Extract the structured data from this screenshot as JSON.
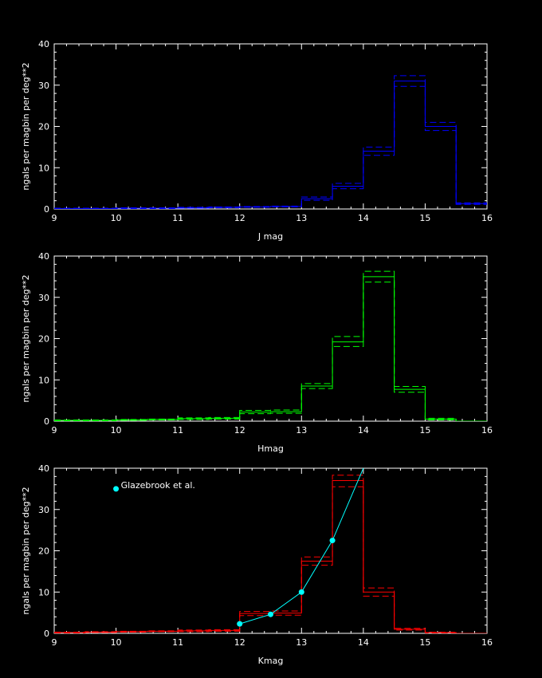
{
  "chart_data": [
    {
      "type": "histogram",
      "xlabel": "J mag",
      "ylabel": "ngals per magbin per deg**2",
      "xlim": [
        9,
        16
      ],
      "ylim": [
        0,
        40
      ],
      "xticks": [
        9,
        10,
        11,
        12,
        13,
        14,
        15,
        16
      ],
      "yticks": [
        0,
        10,
        20,
        30,
        40
      ],
      "color": "#0000ff",
      "bin_edges": [
        9,
        9.5,
        10,
        10.5,
        11,
        11.5,
        12,
        12.5,
        13,
        13.5,
        14,
        14.5,
        15,
        15.5,
        16
      ],
      "values": [
        0.1,
        0.1,
        0.2,
        0.2,
        0.3,
        0.4,
        0.5,
        0.6,
        2.5,
        5.5,
        14,
        31,
        20,
        1.3
      ],
      "err_upper": [
        0.2,
        0.2,
        0.3,
        0.3,
        0.4,
        0.5,
        0.6,
        0.7,
        2.9,
        6.2,
        15,
        32.3,
        21,
        1.5
      ],
      "err_lower": [
        0.05,
        0.05,
        0.1,
        0.1,
        0.2,
        0.3,
        0.4,
        0.5,
        2.1,
        4.9,
        13,
        29.7,
        19,
        1.1
      ]
    },
    {
      "type": "histogram",
      "xlabel": "Hmag",
      "ylabel": "ngals per magbin per deg**2",
      "xlim": [
        9,
        16
      ],
      "ylim": [
        0,
        40
      ],
      "xticks": [
        9,
        10,
        11,
        12,
        13,
        14,
        15,
        16
      ],
      "yticks": [
        0,
        10,
        20,
        30,
        40
      ],
      "color": "#00ff00",
      "bin_edges": [
        9,
        9.5,
        10,
        10.5,
        11,
        11.5,
        12,
        12.5,
        13,
        13.5,
        14,
        14.5,
        15,
        15.5,
        16
      ],
      "values": [
        0.2,
        0.2,
        0.3,
        0.4,
        0.6,
        0.7,
        2.2,
        2.3,
        8.5,
        19.2,
        35,
        7.7,
        0.5,
        0
      ],
      "err_upper": [
        0.3,
        0.3,
        0.4,
        0.5,
        0.8,
        0.9,
        2.6,
        2.7,
        9.1,
        20.5,
        36.3,
        8.4,
        0.7,
        0
      ],
      "err_lower": [
        0.1,
        0.1,
        0.2,
        0.3,
        0.4,
        0.5,
        1.8,
        1.9,
        7.9,
        18.1,
        33.7,
        7.0,
        0.3,
        0
      ]
    },
    {
      "type": "histogram",
      "xlabel": "Kmag",
      "ylabel": "ngals per magbin per deg**2",
      "xlim": [
        9,
        16
      ],
      "ylim": [
        0,
        40
      ],
      "xticks": [
        9,
        10,
        11,
        12,
        13,
        14,
        15,
        16
      ],
      "yticks": [
        0,
        10,
        20,
        30,
        40
      ],
      "color": "#ff0000",
      "bin_edges": [
        9,
        9.5,
        10,
        10.5,
        11,
        11.5,
        12,
        12.5,
        13,
        13.5,
        14,
        14.5,
        15,
        15.5,
        16
      ],
      "values": [
        0.2,
        0.3,
        0.4,
        0.5,
        0.6,
        0.7,
        4.8,
        4.9,
        17.5,
        37,
        10,
        1,
        0.2,
        0
      ],
      "err_upper": [
        0.3,
        0.4,
        0.5,
        0.6,
        0.8,
        0.9,
        5.3,
        5.4,
        18.5,
        38.3,
        11,
        1.2,
        0.3,
        0
      ],
      "err_lower": [
        0.1,
        0.2,
        0.3,
        0.4,
        0.4,
        0.5,
        4.3,
        4.4,
        16.5,
        35.5,
        9,
        0.8,
        0.1,
        0
      ],
      "overlay": {
        "name": "Glazebrook et al.",
        "color": "#00ffff",
        "x": [
          12,
          12.5,
          13,
          13.5,
          14
        ],
        "y": [
          2.3,
          4.6,
          10,
          22.5,
          40
        ],
        "marker_x": [
          12,
          12.5,
          13,
          13.5
        ],
        "legend_marker": {
          "x": 10,
          "y": 35
        }
      }
    }
  ]
}
